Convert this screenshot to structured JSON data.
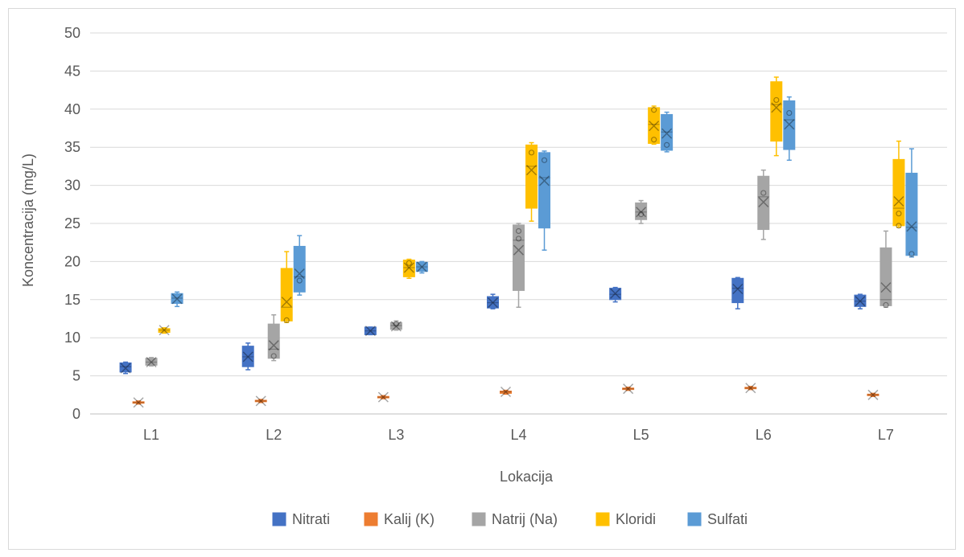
{
  "chart_data": {
    "type": "boxplot",
    "title": "",
    "xlabel": "Lokacija",
    "ylabel": "Koncentracija (mg/L)",
    "ylim": [
      0,
      50
    ],
    "yticks": [
      0,
      5,
      10,
      15,
      20,
      25,
      30,
      35,
      40,
      45,
      50
    ],
    "grid": "horizontal",
    "legend_position": "bottom",
    "categories": [
      "L1",
      "L2",
      "L3",
      "L4",
      "L5",
      "L6",
      "L7"
    ],
    "series": [
      {
        "name": "Nitrati",
        "color": "#4472c4",
        "boxes": [
          {
            "min": 5.3,
            "q1": 5.5,
            "median": 6.2,
            "mean": 6.0,
            "q3": 6.7,
            "max": 6.8,
            "points": []
          },
          {
            "min": 5.8,
            "q1": 6.2,
            "median": 7.5,
            "mean": 7.5,
            "q3": 8.9,
            "max": 9.3,
            "points": []
          },
          {
            "min": 10.4,
            "q1": 10.4,
            "median": 10.9,
            "mean": 10.9,
            "q3": 11.4,
            "max": 11.4,
            "points": []
          },
          {
            "min": 13.8,
            "q1": 13.9,
            "median": 14.6,
            "mean": 14.6,
            "q3": 15.4,
            "max": 15.7,
            "points": []
          },
          {
            "min": 14.7,
            "q1": 15.0,
            "median": 15.7,
            "mean": 15.8,
            "q3": 16.5,
            "max": 16.6,
            "points": []
          },
          {
            "min": 13.8,
            "q1": 14.6,
            "median": 16.5,
            "mean": 16.4,
            "q3": 17.8,
            "max": 17.9,
            "points": []
          },
          {
            "min": 13.8,
            "q1": 14.1,
            "median": 14.8,
            "mean": 14.8,
            "q3": 15.6,
            "max": 15.7,
            "points": []
          }
        ]
      },
      {
        "name": "Kalij (K)",
        "color": "#ed7d31",
        "boxes": [
          {
            "min": 1.3,
            "q1": 1.4,
            "median": 1.5,
            "mean": 1.5,
            "q3": 1.6,
            "max": 1.7,
            "points": []
          },
          {
            "min": 1.5,
            "q1": 1.6,
            "median": 1.7,
            "mean": 1.7,
            "q3": 1.8,
            "max": 1.9,
            "points": []
          },
          {
            "min": 2.0,
            "q1": 2.1,
            "median": 2.2,
            "mean": 2.2,
            "q3": 2.3,
            "max": 2.4,
            "points": []
          },
          {
            "min": 2.6,
            "q1": 2.7,
            "median": 2.9,
            "mean": 2.9,
            "q3": 3.0,
            "max": 3.1,
            "points": []
          },
          {
            "min": 3.1,
            "q1": 3.2,
            "median": 3.3,
            "mean": 3.3,
            "q3": 3.4,
            "max": 3.5,
            "points": []
          },
          {
            "min": 3.2,
            "q1": 3.3,
            "median": 3.4,
            "mean": 3.4,
            "q3": 3.5,
            "max": 3.6,
            "points": []
          },
          {
            "min": 2.3,
            "q1": 2.4,
            "median": 2.5,
            "mean": 2.5,
            "q3": 2.6,
            "max": 2.7,
            "points": []
          }
        ]
      },
      {
        "name": "Natrij (Na)",
        "color": "#a5a5a5",
        "boxes": [
          {
            "min": 6.3,
            "q1": 6.4,
            "median": 6.8,
            "mean": 6.8,
            "q3": 7.3,
            "max": 7.4,
            "points": []
          },
          {
            "min": 7.0,
            "q1": 7.3,
            "median": 8.5,
            "mean": 9.0,
            "q3": 11.8,
            "max": 13.0,
            "points": [
              7.6
            ]
          },
          {
            "min": 11.0,
            "q1": 11.1,
            "median": 11.6,
            "mean": 11.5,
            "q3": 12.0,
            "max": 12.2,
            "points": [
              11.8
            ]
          },
          {
            "min": 14.0,
            "q1": 16.2,
            "median": 22.8,
            "mean": 21.5,
            "q3": 24.8,
            "max": 25.0,
            "points": [
              23.0,
              24.0
            ]
          },
          {
            "min": 25.0,
            "q1": 25.5,
            "median": 26.5,
            "mean": 26.5,
            "q3": 27.7,
            "max": 28.0,
            "points": [
              26.2
            ]
          },
          {
            "min": 22.9,
            "q1": 24.2,
            "median": 28.5,
            "mean": 27.8,
            "q3": 31.2,
            "max": 32.0,
            "points": [
              29.0
            ]
          },
          {
            "min": 14.0,
            "q1": 14.2,
            "median": 15.0,
            "mean": 16.6,
            "q3": 21.8,
            "max": 24.0,
            "points": [
              14.3
            ]
          }
        ]
      },
      {
        "name": "Kloridi",
        "color": "#ffc000",
        "boxes": [
          {
            "min": 10.6,
            "q1": 10.7,
            "median": 11.0,
            "mean": 11.0,
            "q3": 11.2,
            "max": 11.3,
            "points": []
          },
          {
            "min": 12.0,
            "q1": 12.2,
            "median": 14.0,
            "mean": 14.7,
            "q3": 19.1,
            "max": 21.3,
            "points": [
              12.3
            ]
          },
          {
            "min": 17.8,
            "q1": 18.0,
            "median": 19.2,
            "mean": 19.2,
            "q3": 20.2,
            "max": 20.3,
            "points": [
              19.8
            ]
          },
          {
            "min": 25.3,
            "q1": 27.0,
            "median": 32.5,
            "mean": 32.0,
            "q3": 35.3,
            "max": 35.6,
            "points": [
              34.3
            ]
          },
          {
            "min": 35.4,
            "q1": 35.5,
            "median": 38.0,
            "mean": 37.8,
            "q3": 40.2,
            "max": 40.4,
            "points": [
              36.0,
              39.9
            ]
          },
          {
            "min": 33.9,
            "q1": 35.8,
            "median": 40.6,
            "mean": 40.2,
            "q3": 43.6,
            "max": 44.2,
            "points": [
              41.2
            ]
          },
          {
            "min": 24.5,
            "q1": 24.7,
            "median": 27.0,
            "mean": 27.9,
            "q3": 33.4,
            "max": 35.8,
            "points": [
              24.7,
              26.3
            ]
          }
        ]
      },
      {
        "name": "Sulfati",
        "color": "#5b9bd5",
        "boxes": [
          {
            "min": 14.1,
            "q1": 14.5,
            "median": 15.2,
            "mean": 15.1,
            "q3": 15.8,
            "max": 16.0,
            "points": []
          },
          {
            "min": 15.6,
            "q1": 16.0,
            "median": 18.0,
            "mean": 18.4,
            "q3": 22.0,
            "max": 23.4,
            "points": [
              17.5
            ]
          },
          {
            "min": 18.5,
            "q1": 18.7,
            "median": 19.3,
            "mean": 19.3,
            "q3": 19.9,
            "max": 20.0,
            "points": []
          },
          {
            "min": 21.5,
            "q1": 24.4,
            "median": 31.0,
            "mean": 30.6,
            "q3": 34.3,
            "max": 34.5,
            "points": [
              33.3
            ]
          },
          {
            "min": 34.4,
            "q1": 34.6,
            "median": 37.0,
            "mean": 36.8,
            "q3": 39.3,
            "max": 39.6,
            "points": [
              35.3
            ]
          },
          {
            "min": 33.3,
            "q1": 34.7,
            "median": 38.6,
            "mean": 38.0,
            "q3": 41.1,
            "max": 41.6,
            "points": [
              39.5
            ]
          },
          {
            "min": 20.6,
            "q1": 20.8,
            "median": 24.5,
            "mean": 24.6,
            "q3": 31.6,
            "max": 34.8,
            "points": [
              21.0
            ]
          }
        ]
      }
    ]
  }
}
